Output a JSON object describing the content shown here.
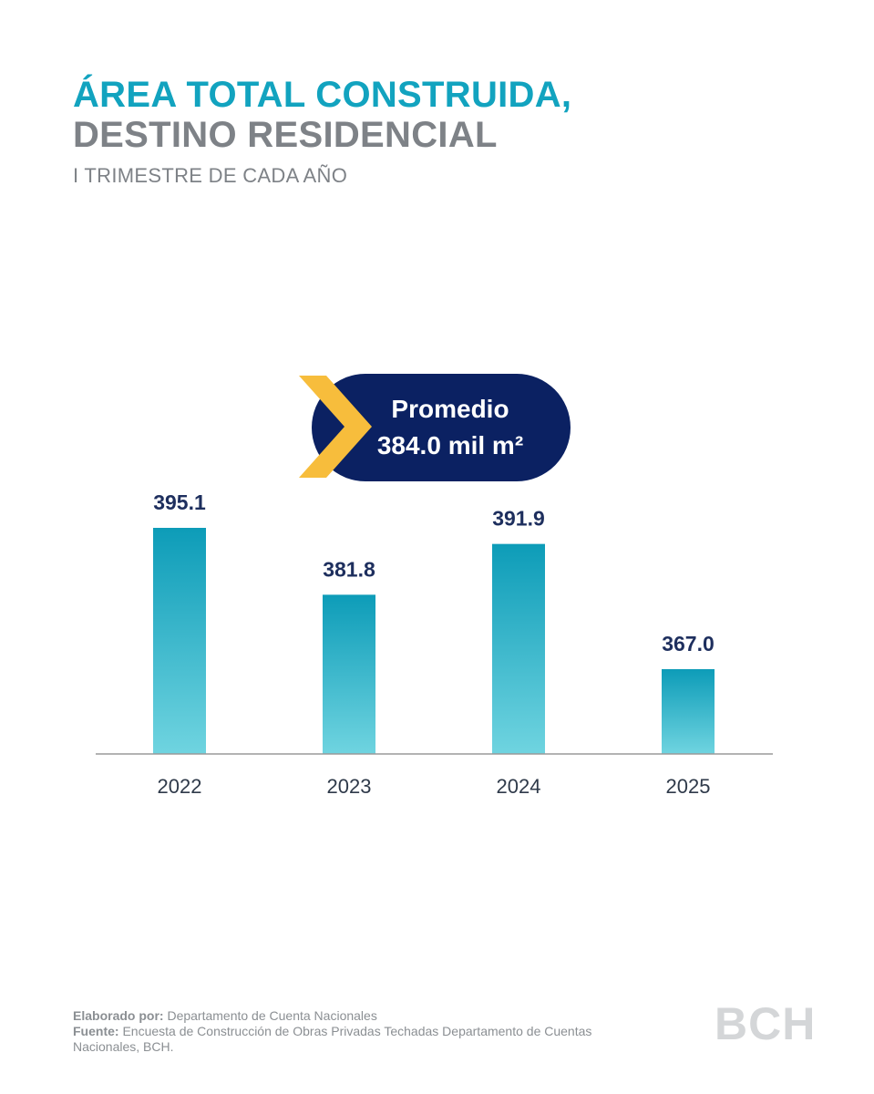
{
  "header": {
    "title_line1": "ÁREA TOTAL CONSTRUIDA,",
    "title_line2": "DESTINO RESIDENCIAL",
    "subtitle": "I TRIMESTRE DE CADA AÑO"
  },
  "callout": {
    "label": "Promedio",
    "value": "384.0 mil m²"
  },
  "chart_data": {
    "type": "bar",
    "categories": [
      "2022",
      "2023",
      "2024",
      "2025"
    ],
    "values": [
      395.1,
      381.8,
      391.9,
      367.0
    ],
    "value_labels": [
      "395.1",
      "381.8",
      "391.9",
      "367.0"
    ],
    "title": "ÁREA TOTAL CONSTRUIDA, DESTINO RESIDENCIAL",
    "subtitle": "I TRIMESTRE DE CADA AÑO",
    "xlabel": "",
    "ylabel": "",
    "grid": false,
    "colors": {
      "bar_top": "#0d9cb8",
      "bar_bottom": "#6fd4e0",
      "label": "#1e2f5e",
      "axis": "#9a9a9a"
    }
  },
  "footer": {
    "elaborado_label": "Elaborado por:",
    "elaborado_value": "Departamento de Cuenta Nacionales",
    "fuente_label": "Fuente:",
    "fuente_value": "Encuesta de Construcción de Obras Privadas Techadas Departamento de Cuentas Nacionales, BCH."
  },
  "logo": {
    "text": "BCH"
  },
  "colors": {
    "accent": "#12a3bf",
    "navy": "#0b2162",
    "gold": "#f7bd3c",
    "gray": "#7e8287"
  }
}
